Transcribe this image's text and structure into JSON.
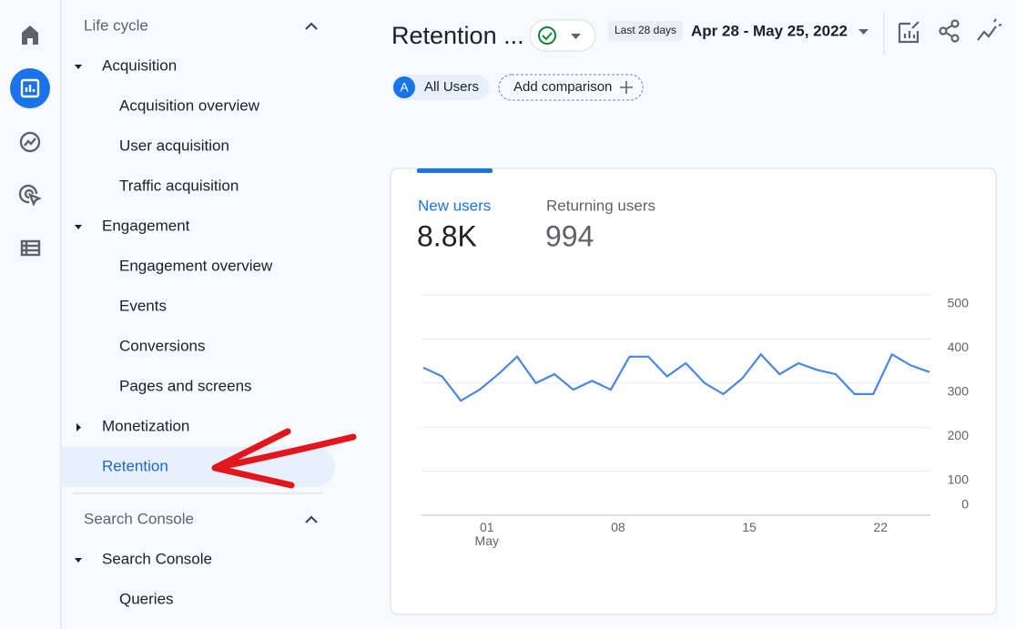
{
  "nav": {
    "sections": [
      {
        "title": "Life cycle",
        "items": [
          {
            "label": "Acquisition",
            "expanded": true,
            "children": [
              "Acquisition overview",
              "User acquisition",
              "Traffic acquisition"
            ]
          },
          {
            "label": "Engagement",
            "expanded": true,
            "children": [
              "Engagement overview",
              "Events",
              "Conversions",
              "Pages and screens"
            ]
          },
          {
            "label": "Monetization",
            "expanded": false,
            "children": []
          },
          {
            "label": "Retention",
            "selected": true,
            "children": []
          }
        ]
      },
      {
        "title": "Search Console",
        "items": [
          {
            "label": "Search Console",
            "expanded": true,
            "children": [
              "Queries"
            ]
          }
        ]
      }
    ]
  },
  "header": {
    "title": "Retention ...",
    "date_preset": "Last 28 days",
    "date_range": "Apr 28 - May 25, 2022"
  },
  "comparison": {
    "segment_badge": "A",
    "segment": "All Users",
    "add": "Add comparison"
  },
  "card": {
    "metrics": [
      {
        "label": "New users",
        "value": "8.8K"
      },
      {
        "label": "Returning users",
        "value": "994"
      }
    ]
  },
  "chart_data": {
    "type": "line",
    "categories": [
      null,
      null,
      null,
      "01\nMay",
      null,
      null,
      null,
      null,
      null,
      null,
      "08",
      null,
      null,
      null,
      null,
      null,
      null,
      "15",
      null,
      null,
      null,
      null,
      null,
      null,
      "22",
      null,
      null,
      null
    ],
    "values": [
      335,
      315,
      260,
      285,
      320,
      360,
      300,
      320,
      285,
      305,
      285,
      360,
      360,
      315,
      345,
      300,
      275,
      310,
      365,
      320,
      345,
      330,
      320,
      275,
      275,
      365,
      340,
      325
    ],
    "color": "#4a86e8",
    "ylim": [
      0,
      500
    ],
    "yticks": [
      0,
      100,
      200,
      300,
      400,
      500
    ],
    "grid": true
  }
}
